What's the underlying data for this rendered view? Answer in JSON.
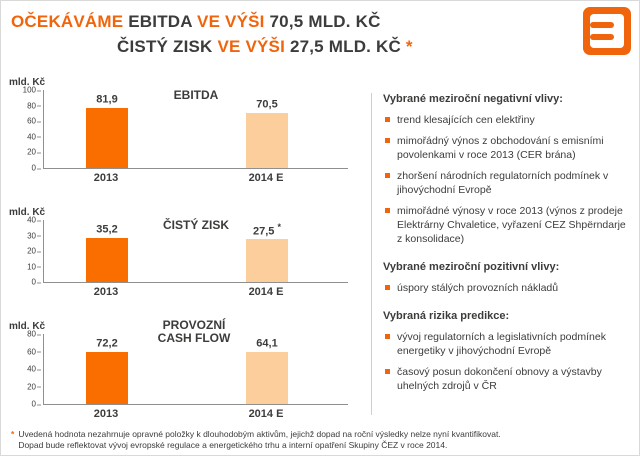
{
  "colors": {
    "accent_orange": "#f0650c",
    "bar_2013": "#fa6e00",
    "bar_2014e": "#fcce9c",
    "dark_text": "#3c3c3b",
    "axis_gray": "#8f8f8f",
    "divider_gray": "#cfcfcf"
  },
  "header": {
    "line1": [
      "OČEKÁVÁME",
      "EBITDA",
      "VE VÝŠI",
      "70,5 MLD. KČ"
    ],
    "line2": [
      "ČISTÝ ZISK",
      "VE VÝŠI",
      "27,5 MLD. KČ",
      "*"
    ]
  },
  "chart_data": [
    {
      "type": "bar",
      "title": "EBITDA",
      "unit": "mld. Kč",
      "yticks": [
        100,
        80,
        60,
        40,
        20,
        0
      ],
      "ymax": 100,
      "categories": [
        "2013",
        "2014 E"
      ],
      "values": [
        81.9,
        70.5
      ],
      "value_labels": [
        "81,9",
        "70,5"
      ],
      "value_suffixes": [
        "",
        ""
      ],
      "bar_colors": [
        "#fa6e00",
        "#fcce9c"
      ]
    },
    {
      "type": "bar",
      "title": "ČISTÝ ZISK",
      "unit": "mld. Kč",
      "yticks": [
        40,
        30,
        20,
        10,
        0
      ],
      "ymax": 40,
      "categories": [
        "2013",
        "2014 E"
      ],
      "values": [
        35.2,
        27.5
      ],
      "value_labels": [
        "35,2",
        "27,5"
      ],
      "value_suffixes": [
        "",
        "*"
      ],
      "bar_colors": [
        "#fa6e00",
        "#fcce9c"
      ]
    },
    {
      "type": "bar",
      "title": "PROVOZNÍ CASH FLOW",
      "unit": "mld. Kč",
      "yticks": [
        80,
        60,
        40,
        20,
        0
      ],
      "ymax": 80,
      "categories": [
        "2013",
        "2014 E"
      ],
      "values": [
        72.2,
        64.1
      ],
      "value_labels": [
        "72,2",
        "64,1"
      ],
      "value_suffixes": [
        "",
        ""
      ],
      "bar_colors": [
        "#fa6e00",
        "#fcce9c"
      ]
    }
  ],
  "right": {
    "sections": [
      {
        "heading": "Vybrané meziroční negativní vlivy:",
        "bullets": [
          "trend klesajících cen elektřiny",
          "mimořádný výnos z obchodování s emisními povolenkami v roce 2013 (CER brána)",
          "zhoršení národních regulatorních podmínek v jihovýchodní Evropě",
          "mimořádné výnosy v roce 2013 (výnos z prodeje Elektrárny Chvaletice, vyřazení CEZ Shpërndarje z konsolidace)"
        ]
      },
      {
        "heading": "Vybrané meziroční pozitivní vlivy:",
        "bullets": [
          "úspory stálých provozních nákladů"
        ]
      },
      {
        "heading": "Vybraná rizika predikce:",
        "bullets": [
          "vývoj regulatorních a legislativních podmínek energetiky v jihovýchodní Evropě",
          "časový posun dokončení obnovy a výstavby uhelných zdrojů v ČR"
        ]
      }
    ]
  },
  "footnote": {
    "marker": "*",
    "line1": "Uvedená hodnota nezahrnuje opravné položky k dlouhodobým aktivům, jejichž dopad na roční výsledky nelze nyní kvantifikovat.",
    "line2": "Dopad bude reflektovat vývoj evropské regulace a energetického trhu a interní opatření Skupiny ČEZ v roce 2014."
  }
}
